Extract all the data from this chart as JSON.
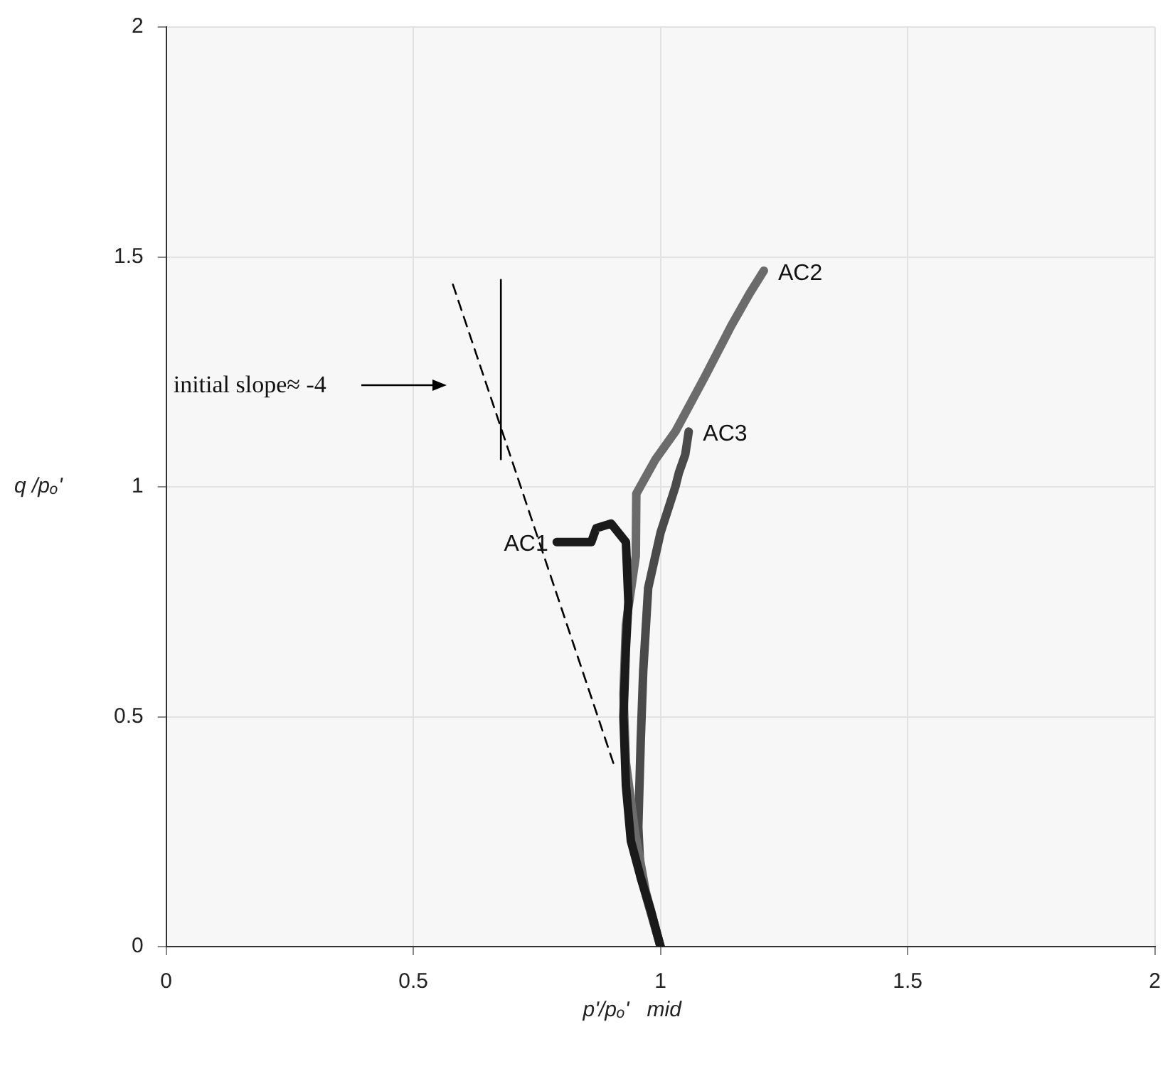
{
  "chart_data": {
    "type": "line",
    "xlabel": "p'/pₒ'   mid",
    "ylabel": "q /pₒ'",
    "xlim": [
      0,
      2
    ],
    "xticks": [
      0,
      0.5,
      1,
      1.5,
      2
    ],
    "ylim": [
      0,
      2
    ],
    "yticks": [
      0,
      0.5,
      1,
      1.5,
      2
    ],
    "grid": true,
    "legend": false,
    "marker": "none",
    "series": [
      {
        "name": "AC1",
        "color": "#1a1a1a",
        "x": [
          1,
          0.98,
          0.96,
          0.94,
          0.93,
          0.925,
          0.93,
          0.935,
          0.93,
          0.9,
          0.87,
          0.86,
          0.83,
          0.79
        ],
        "values": [
          0,
          0.08,
          0.15,
          0.23,
          0.35,
          0.5,
          0.65,
          0.75,
          0.88,
          0.92,
          0.91,
          0.88,
          0.88,
          0.88
        ]
      },
      {
        "name": "AC2",
        "color": "#6b6b6b",
        "x": [
          1,
          0.97,
          0.949,
          0.93,
          0.925,
          0.93,
          0.95,
          0.951,
          0.99,
          1.03,
          1.09,
          1.143,
          1.18,
          1.209
        ],
        "values": [
          0,
          0.12,
          0.245,
          0.4,
          0.55,
          0.7,
          0.85,
          0.985,
          1.06,
          1.12,
          1.24,
          1.35,
          1.42,
          1.47
        ]
      },
      {
        "name": "AC3",
        "color": "#4a4a4a",
        "x": [
          1,
          0.96,
          0.955,
          0.96,
          0.965,
          0.975,
          1.0,
          1.03,
          1.037,
          1.05,
          1.057
        ],
        "values": [
          0,
          0.15,
          0.26,
          0.45,
          0.6,
          0.78,
          0.9,
          1.0,
          1.03,
          1.07,
          1.12
        ]
      },
      {
        "type": "line",
        "line_style": "dashed",
        "color": "#000000",
        "x": [
          0.58,
          0.909
        ],
        "values": [
          1.44,
          0.385
        ]
      },
      {
        "type": "line",
        "color": "#000000",
        "x": [
          0.677,
          0.677
        ],
        "values": [
          1.45,
          1.06
        ]
      }
    ],
    "annotations": [
      "initial slope≈ -4"
    ]
  }
}
